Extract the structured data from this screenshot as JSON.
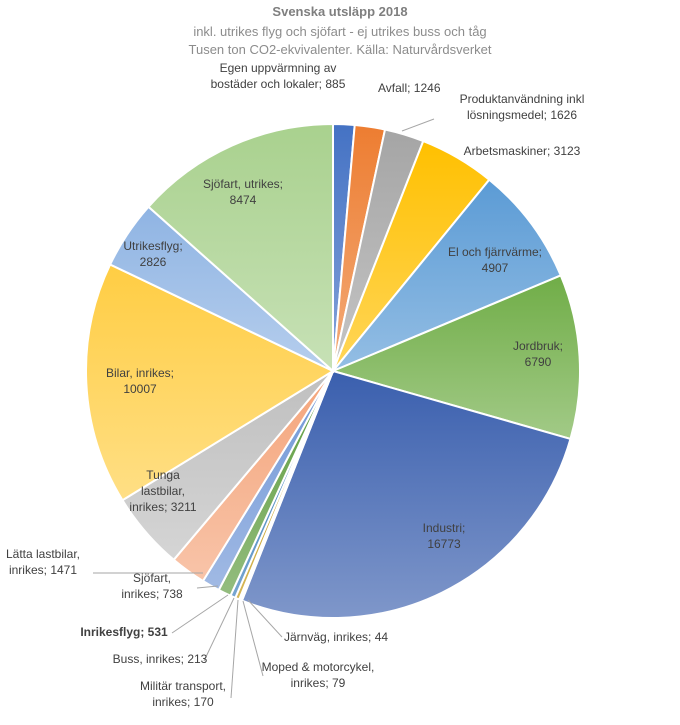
{
  "chart_data": {
    "type": "pie",
    "title": "Svenska utsläpp 2018",
    "subtitle": [
      "inkl. utrikes flyg och sjöfart - ej utrikes buss och tåg",
      "Tusen ton CO2-ekvivalenter. Källa: Naturvårdsverket"
    ],
    "slices": [
      {
        "label": "Egen uppvärmning av bostäder och lokaler",
        "value": 885,
        "color": "#4472c4"
      },
      {
        "label": "Avfall",
        "value": 1246,
        "color": "#ed7d31"
      },
      {
        "label": "Produktanvändning inkl lösningsmedel",
        "value": 1626,
        "color": "#a5a5a5"
      },
      {
        "label": "Arbetsmaskiner",
        "value": 3123,
        "color": "#ffc000"
      },
      {
        "label": "El och fjärrvärme",
        "value": 4907,
        "color": "#5b9bd5"
      },
      {
        "label": "Jordbruk",
        "value": 6790,
        "color": "#70ad47"
      },
      {
        "label": "Industri",
        "value": 16773,
        "color": "#3a5fae"
      },
      {
        "label": "Järnväg, inrikes",
        "value": 44,
        "color": "#c55a11"
      },
      {
        "label": "Moped & motorcykel, inrikes",
        "value": 79,
        "color": "#7b7b7b"
      },
      {
        "label": "Militär transport, inrikes",
        "value": 170,
        "color": "#bf9000"
      },
      {
        "label": "Buss, inrikes",
        "value": 213,
        "color": "#2e75b6"
      },
      {
        "label": "Inrikesflyg",
        "value": 531,
        "color": "#5a9a3a"
      },
      {
        "label": "Sjöfart, inrikes",
        "value": 738,
        "color": "#6e95d6"
      },
      {
        "label": "Lätta lastbilar, inrikes",
        "value": 1471,
        "color": "#f4a47a"
      },
      {
        "label": "Tunga lastbilar, inrikes",
        "value": 3211,
        "color": "#bfbfbf"
      },
      {
        "label": "Bilar, inrikes",
        "value": 10007,
        "color": "#ffcd43"
      },
      {
        "label": "Utrikesflyg",
        "value": 2826,
        "color": "#8fb4e3"
      },
      {
        "label": "Sjöfart, utrikes",
        "value": 8474,
        "color": "#a9d18e"
      }
    ]
  },
  "labels": [
    {
      "lines": [
        "Egen uppvärmning av",
        "bostäder och lokaler; 885"
      ]
    },
    {
      "lines": [
        "Avfall; 1246"
      ]
    },
    {
      "lines": [
        "Produktanvändning inkl",
        "lösningsmedel; 1626"
      ]
    },
    {
      "lines": [
        "Arbetsmaskiner; 3123"
      ]
    },
    {
      "lines": [
        "El och fjärrvärme;",
        "4907"
      ]
    },
    {
      "lines": [
        "Jordbruk;",
        "6790"
      ]
    },
    {
      "lines": [
        "Industri;",
        "16773"
      ]
    },
    {
      "lines": [
        "Järnväg, inrikes; 44"
      ]
    },
    {
      "lines": [
        "Moped & motorcykel,",
        "inrikes; 79"
      ]
    },
    {
      "lines": [
        "Militär transport,",
        "inrikes; 170"
      ]
    },
    {
      "lines": [
        "Buss, inrikes; 213"
      ]
    },
    {
      "lines": [
        "Inrikesflyg; 531"
      ]
    },
    {
      "lines": [
        "Sjöfart,",
        "inrikes; 738"
      ]
    },
    {
      "lines": [
        "Lätta lastbilar,",
        "inrikes; 1471"
      ]
    },
    {
      "lines": [
        "Tunga",
        "lastbilar,",
        "inrikes; 3211"
      ]
    },
    {
      "lines": [
        "Bilar, inrikes;",
        "10007"
      ]
    },
    {
      "lines": [
        "Utrikesflyg;",
        "2826"
      ]
    },
    {
      "lines": [
        "Sjöfart, utrikes;",
        "8474"
      ]
    }
  ]
}
